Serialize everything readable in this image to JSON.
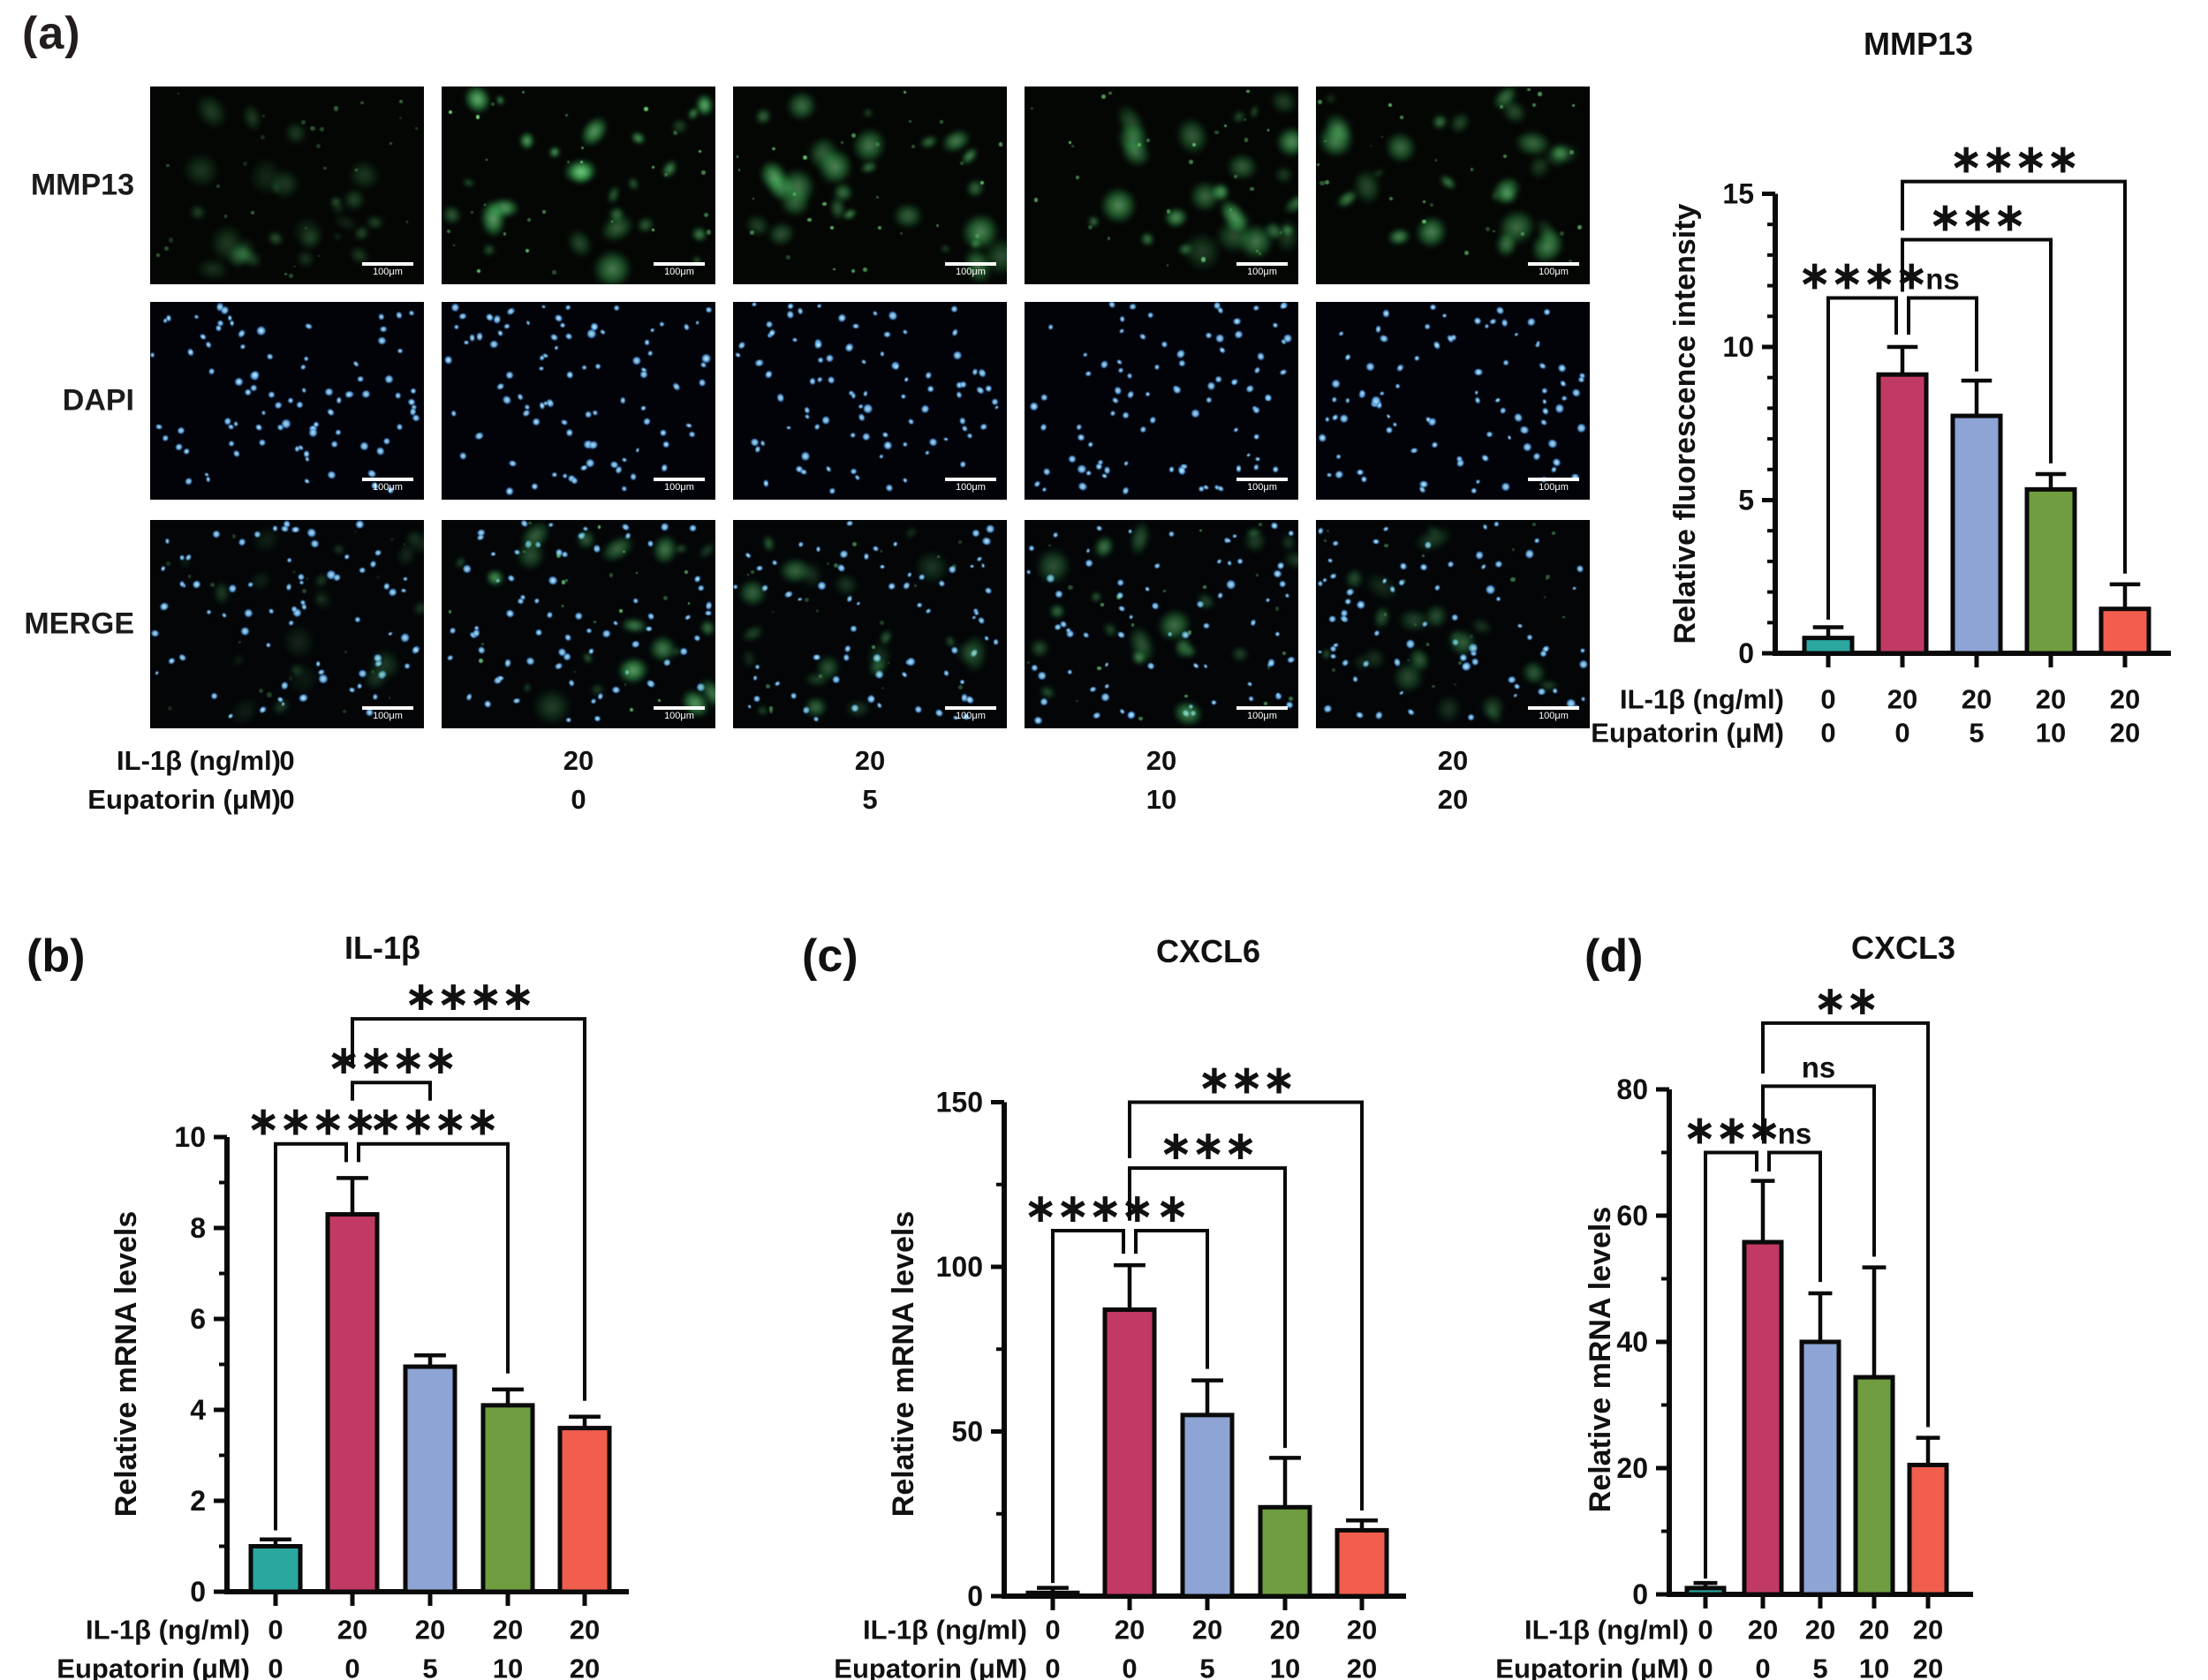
{
  "figure": {
    "panel_a_label": "(a)"
  },
  "colors": {
    "teal": "#2aa79e",
    "crimson": "#c13a63",
    "blue": "#8da4d4",
    "green": "#6f9d40",
    "red": "#f15e4e",
    "bar_stroke": "#0a0a0a"
  },
  "panel_a": {
    "label": "(a)",
    "row_labels": [
      "MMP13",
      "DAPI",
      "MERGE"
    ],
    "scale_bar_label": "100μm",
    "treatment_rows": [
      {
        "label": "IL-1β (ng/ml)",
        "values": [
          "0",
          "20",
          "20",
          "20",
          "20"
        ]
      },
      {
        "label": "Eupatorin (μM)",
        "values": [
          "0",
          "0",
          "5",
          "10",
          "20"
        ]
      }
    ]
  },
  "chart_data": [
    {
      "id": "mmp13_if",
      "type": "bar",
      "panel_label": "",
      "title": "MMP13",
      "ylabel": "Relative fluorescence intensity",
      "ylim": [
        0,
        15
      ],
      "yticks": [
        0,
        5,
        10,
        15
      ],
      "minor_step": 1,
      "bars": [
        {
          "value": 0.5,
          "err": 0.35,
          "color": "teal"
        },
        {
          "value": 9.1,
          "err": 0.9,
          "color": "crimson"
        },
        {
          "value": 7.75,
          "err": 1.15,
          "color": "blue"
        },
        {
          "value": 5.35,
          "err": 0.5,
          "color": "green"
        },
        {
          "value": 1.45,
          "err": 0.8,
          "color": "red"
        }
      ],
      "x_rows": [
        {
          "label": "IL-1β (ng/ml)",
          "values": [
            "0",
            "20",
            "20",
            "20",
            "20"
          ]
        },
        {
          "label": "Eupatorin (μM)",
          "values": [
            "0",
            "0",
            "5",
            "10",
            "20"
          ]
        }
      ],
      "brackets": [
        {
          "a": 0,
          "b": 1,
          "label": "****",
          "y": 11.6,
          "legA": 1.1,
          "legB": 10.4,
          "dxB": -7
        },
        {
          "a": 1,
          "b": 2,
          "label": "ns",
          "y": 11.6,
          "legA": 10.4,
          "legB": 9.2,
          "dxA": 7
        },
        {
          "a": 1,
          "b": 3,
          "label": "***",
          "y": 13.5,
          "legA": 11.8,
          "legB": 6.2
        },
        {
          "a": 1,
          "b": 4,
          "label": "****",
          "y": 15.4,
          "legA": 13.8,
          "legB": 2.6
        }
      ]
    },
    {
      "id": "il1b",
      "type": "bar",
      "panel_label": "(b)",
      "title": "IL-1β",
      "ylabel": "Relative mRNA levels",
      "ylim": [
        0,
        10
      ],
      "yticks": [
        0,
        2,
        4,
        6,
        8,
        10
      ],
      "minor_step": 1,
      "bars": [
        {
          "value": 1.0,
          "err": 0.15,
          "color": "teal"
        },
        {
          "value": 8.3,
          "err": 0.8,
          "color": "crimson"
        },
        {
          "value": 4.95,
          "err": 0.25,
          "color": "blue"
        },
        {
          "value": 4.1,
          "err": 0.35,
          "color": "green"
        },
        {
          "value": 3.6,
          "err": 0.25,
          "color": "red"
        }
      ],
      "x_rows": [
        {
          "label": "IL-1β (ng/ml)",
          "values": [
            "0",
            "20",
            "20",
            "20",
            "20"
          ]
        },
        {
          "label": "Eupatorin (μM)",
          "values": [
            "0",
            "0",
            "5",
            "10",
            "20"
          ]
        }
      ],
      "brackets": [
        {
          "a": 0,
          "b": 1,
          "label": "****",
          "y": 9.85,
          "legA": 1.35,
          "legB": 9.45,
          "dxB": -7
        },
        {
          "a": 1,
          "b": 2,
          "label": "****",
          "y": 11.2,
          "legA": 10.8,
          "legB": 10.8
        },
        {
          "a": 1,
          "b": 3,
          "label": "****",
          "y": 9.85,
          "legA": 9.45,
          "legB": 4.8,
          "dxA": 7
        },
        {
          "a": 1,
          "b": 4,
          "label": "****",
          "y": 12.6,
          "legA": 11.6,
          "legB": 4.2
        }
      ]
    },
    {
      "id": "cxcl6",
      "type": "bar",
      "panel_label": "(c)",
      "title": "CXCL6",
      "ylabel": "Relative mRNA levels",
      "ylim": [
        0,
        150
      ],
      "yticks": [
        0,
        50,
        100,
        150
      ],
      "minor_step": 25,
      "bars": [
        {
          "value": 1,
          "err": 1.5,
          "color": "teal"
        },
        {
          "value": 87,
          "err": 13.5,
          "color": "crimson"
        },
        {
          "value": 55,
          "err": 10.5,
          "color": "blue"
        },
        {
          "value": 27,
          "err": 15,
          "color": "green"
        },
        {
          "value": 20,
          "err": 3,
          "color": "red"
        }
      ],
      "x_rows": [
        {
          "label": "IL-1β (ng/ml)",
          "values": [
            "0",
            "20",
            "20",
            "20",
            "20"
          ]
        },
        {
          "label": "Eupatorin (μM)",
          "values": [
            "0",
            "0",
            "5",
            "10",
            "20"
          ]
        }
      ],
      "brackets": [
        {
          "a": 0,
          "b": 1,
          "label": "****",
          "y": 111,
          "legA": 4,
          "legB": 104,
          "dxB": -7
        },
        {
          "a": 1,
          "b": 2,
          "label": "*",
          "y": 111,
          "legA": 104,
          "legB": 69,
          "dxA": 7
        },
        {
          "a": 1,
          "b": 3,
          "label": "***",
          "y": 130,
          "legA": 114,
          "legB": 45
        },
        {
          "a": 1,
          "b": 4,
          "label": "***",
          "y": 150,
          "legA": 133,
          "legB": 26
        }
      ]
    },
    {
      "id": "cxcl3",
      "type": "bar",
      "panel_label": "(d)",
      "title": "CXCL3",
      "ylabel": "Relative mRNA levels",
      "ylim": [
        0,
        80
      ],
      "yticks": [
        0,
        20,
        40,
        60,
        80
      ],
      "minor_step": 10,
      "bars": [
        {
          "value": 1,
          "err": 0.8,
          "color": "teal"
        },
        {
          "value": 55.8,
          "err": 9.7,
          "color": "crimson"
        },
        {
          "value": 40,
          "err": 7.7,
          "color": "blue"
        },
        {
          "value": 34.4,
          "err": 17.4,
          "color": "green"
        },
        {
          "value": 20.5,
          "err": 4.3,
          "color": "red"
        }
      ],
      "x_rows": [
        {
          "label": "IL-1β (ng/ml)",
          "values": [
            "0",
            "20",
            "20",
            "20",
            "20"
          ]
        },
        {
          "label": "Eupatorin (μM)",
          "values": [
            "0",
            "0",
            "5",
            "10",
            "20"
          ]
        }
      ],
      "brackets": [
        {
          "a": 0,
          "b": 1,
          "label": "***",
          "y": 70,
          "legA": 2.5,
          "legB": 67,
          "dxB": -7
        },
        {
          "a": 1,
          "b": 2,
          "label": "ns",
          "y": 70,
          "legA": 67,
          "legB": 49.5,
          "dxA": 7
        },
        {
          "a": 1,
          "b": 3,
          "label": "ns",
          "y": 80.5,
          "legA": 72,
          "legB": 53.5
        },
        {
          "a": 1,
          "b": 4,
          "label": "**",
          "y": 90.5,
          "legA": 82.5,
          "legB": 26.5
        }
      ]
    }
  ]
}
